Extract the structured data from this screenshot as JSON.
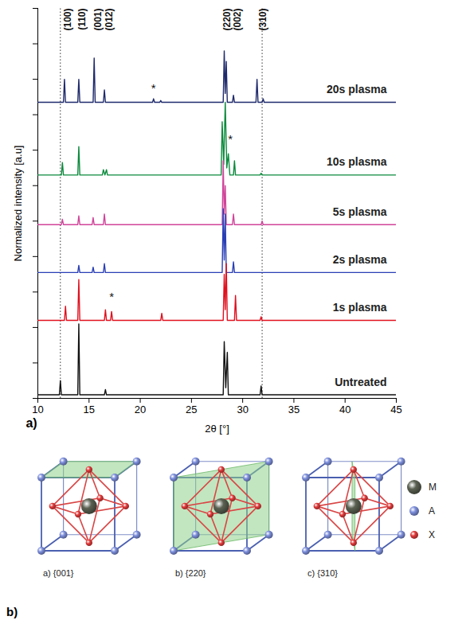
{
  "chart_data": {
    "type": "line",
    "panel_label": "a)",
    "x_label": "2θ [°]",
    "y_label": "Normalized intensity [a.u]",
    "xlim": [
      10,
      45
    ],
    "xticks": [
      10,
      15,
      20,
      25,
      30,
      35,
      40,
      45
    ],
    "ylim": [
      0,
      11
    ],
    "yticks": [
      0,
      1,
      2,
      3,
      4,
      5,
      6,
      7,
      8,
      9,
      10,
      11
    ],
    "tick_labels": "x",
    "vlines": [
      12.2,
      31.9
    ],
    "peak_labels": [
      {
        "text": "(100)",
        "x": 12.6
      },
      {
        "text": "(110)",
        "x": 14.0
      },
      {
        "text": "(001)",
        "x": 15.5
      },
      {
        "text": "(012)",
        "x": 16.6
      },
      {
        "text": "(220)",
        "x": 28.1
      },
      {
        "text": "(002)",
        "x": 29.1
      },
      {
        "text": "(310)",
        "x": 31.6
      }
    ],
    "annotations": [
      {
        "text": "*",
        "x": 21.3,
        "y": 8.75
      },
      {
        "text": "*",
        "x": 28.8,
        "y": 7.3
      },
      {
        "text": "*",
        "x": 17.2,
        "y": 2.85
      }
    ],
    "series": [
      {
        "name": "20s plasma",
        "color": "#1f2a6b",
        "x": [
          10,
          12.5,
          12.6,
          12.7,
          13.9,
          14.0,
          14.1,
          15.4,
          15.5,
          15.6,
          16.4,
          16.5,
          16.6,
          21.2,
          21.3,
          21.4,
          21.9,
          22.0,
          22.1,
          28.1,
          28.2,
          28.3,
          28.4,
          28.5,
          29.0,
          29.1,
          29.2,
          31.3,
          31.4,
          31.5,
          31.9,
          32.0,
          32.1,
          45
        ],
        "values": [
          8.35,
          8.35,
          9.0,
          8.35,
          8.35,
          9.0,
          8.35,
          8.35,
          9.6,
          8.35,
          8.35,
          8.7,
          8.35,
          8.35,
          8.45,
          8.35,
          8.35,
          8.4,
          8.35,
          8.35,
          9.8,
          8.6,
          9.5,
          8.35,
          8.35,
          8.55,
          8.35,
          8.35,
          9.0,
          8.35,
          8.35,
          8.45,
          8.35,
          8.35
        ]
      },
      {
        "name": "10s plasma",
        "color": "#0b8a3c",
        "x": [
          10,
          12.3,
          12.4,
          12.5,
          13.9,
          14.0,
          14.1,
          16.3,
          16.4,
          16.55,
          16.7,
          16.8,
          27.9,
          28.0,
          28.15,
          28.3,
          28.45,
          28.6,
          28.75,
          29.1,
          29.2,
          29.3,
          31.7,
          31.8,
          31.9,
          45
        ],
        "values": [
          6.3,
          6.3,
          6.65,
          6.3,
          6.3,
          7.1,
          6.3,
          6.3,
          6.45,
          6.3,
          6.45,
          6.3,
          6.3,
          7.8,
          6.6,
          8.35,
          6.5,
          6.9,
          6.3,
          6.3,
          6.7,
          6.3,
          6.3,
          6.35,
          6.3,
          6.3
        ]
      },
      {
        "name": "5s plasma",
        "color": "#d0449a",
        "x": [
          10,
          12.3,
          12.4,
          12.5,
          13.9,
          14.0,
          14.1,
          15.3,
          15.4,
          15.5,
          16.4,
          16.5,
          16.6,
          28.0,
          28.1,
          28.2,
          28.3,
          28.4,
          29.0,
          29.1,
          29.2,
          31.8,
          31.9,
          32.0,
          45
        ],
        "values": [
          4.9,
          4.9,
          5.05,
          4.9,
          4.9,
          5.15,
          4.9,
          4.9,
          5.1,
          4.9,
          4.9,
          5.2,
          4.9,
          4.9,
          6.7,
          5.2,
          6.0,
          4.9,
          4.9,
          5.2,
          4.9,
          4.9,
          5.0,
          4.9,
          4.9
        ]
      },
      {
        "name": "2s plasma",
        "color": "#2a3fb5",
        "x": [
          10,
          13.9,
          14.0,
          14.1,
          15.3,
          15.4,
          15.5,
          16.4,
          16.5,
          16.6,
          28.0,
          28.1,
          28.2,
          28.3,
          28.4,
          29.0,
          29.1,
          29.2,
          45
        ],
        "values": [
          3.55,
          3.55,
          3.75,
          3.55,
          3.55,
          3.7,
          3.55,
          3.55,
          3.8,
          3.55,
          3.55,
          5.35,
          3.9,
          5.2,
          3.55,
          3.55,
          3.85,
          3.55,
          3.55
        ]
      },
      {
        "name": "1s plasma",
        "color": "#e0101e",
        "x": [
          10,
          12.6,
          12.7,
          12.8,
          13.9,
          14.0,
          14.1,
          16.5,
          16.6,
          16.7,
          17.1,
          17.2,
          17.3,
          22.0,
          22.1,
          22.2,
          28.1,
          28.2,
          28.3,
          28.4,
          28.5,
          29.2,
          29.3,
          29.4,
          31.7,
          31.8,
          31.9,
          45
        ],
        "values": [
          2.2,
          2.2,
          2.6,
          2.2,
          2.2,
          3.35,
          2.2,
          2.2,
          2.5,
          2.2,
          2.2,
          2.45,
          2.2,
          2.2,
          2.4,
          2.2,
          2.2,
          3.5,
          2.5,
          3.8,
          2.2,
          2.2,
          2.9,
          2.2,
          2.2,
          2.3,
          2.2,
          2.2
        ]
      },
      {
        "name": "Untreated",
        "color": "#111111",
        "x": [
          10,
          12.1,
          12.2,
          12.3,
          13.9,
          14.0,
          14.1,
          16.5,
          16.6,
          16.7,
          28.1,
          28.2,
          28.35,
          28.5,
          28.6,
          31.7,
          31.8,
          31.9,
          45
        ],
        "values": [
          0.1,
          0.1,
          0.5,
          0.1,
          0.1,
          2.1,
          0.1,
          0.1,
          0.25,
          0.1,
          0.1,
          1.6,
          0.3,
          1.3,
          0.1,
          0.1,
          0.35,
          0.1,
          0.1
        ]
      }
    ]
  },
  "diagram": {
    "label": "b)",
    "panels": [
      {
        "label": "a) {001}"
      },
      {
        "label": "b) {220}"
      },
      {
        "label": "c) {310}"
      }
    ],
    "legend": [
      {
        "name": "M",
        "color": "#5b6152"
      },
      {
        "name": "A",
        "color": "#7d8fdc"
      },
      {
        "name": "X",
        "color": "#e23a3a"
      }
    ]
  }
}
